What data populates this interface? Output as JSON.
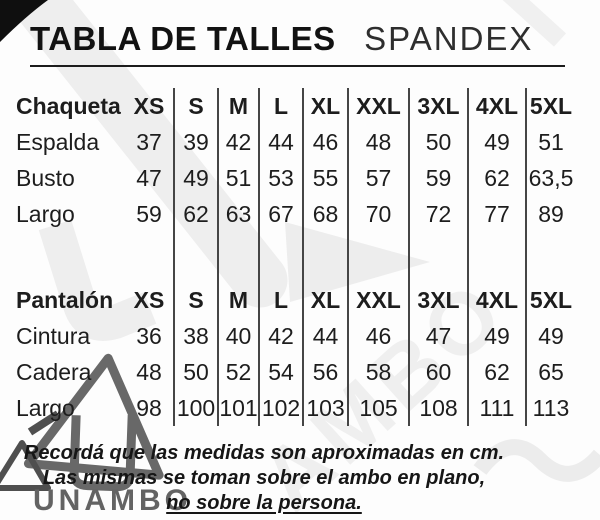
{
  "header": {
    "title": "TABLA DE TALLES",
    "subtitle": "SPANDEX"
  },
  "sizes": [
    "XS",
    "S",
    "M",
    "L",
    "XL",
    "XXL",
    "3XL",
    "4XL",
    "5XL"
  ],
  "tables": [
    {
      "section": "Chaqueta",
      "rows": [
        {
          "label": "Espalda",
          "values": [
            "37",
            "39",
            "42",
            "44",
            "46",
            "48",
            "50",
            "49",
            "51"
          ]
        },
        {
          "label": "Busto",
          "values": [
            "47",
            "49",
            "51",
            "53",
            "55",
            "57",
            "59",
            "62",
            "63,5"
          ]
        },
        {
          "label": "Largo",
          "values": [
            "59",
            "62",
            "63",
            "67",
            "68",
            "70",
            "72",
            "77",
            "89"
          ]
        }
      ]
    },
    {
      "section": "Pantalón",
      "rows": [
        {
          "label": "Cintura",
          "values": [
            "36",
            "38",
            "40",
            "42",
            "44",
            "46",
            "47",
            "49",
            "49"
          ]
        },
        {
          "label": "Cadera",
          "values": [
            "48",
            "50",
            "52",
            "54",
            "56",
            "58",
            "60",
            "62",
            "65"
          ]
        },
        {
          "label": "Largo",
          "values": [
            "98",
            "100",
            "101",
            "102",
            "103",
            "105",
            "108",
            "111",
            "113"
          ]
        }
      ]
    }
  ],
  "footer": {
    "line1": "Recordá que las medidas son aproximadas en cm.",
    "line2": "Las mismas se toman sobre el ambo en plano,",
    "line3": "no sobre la persona."
  },
  "watermark": {
    "brand": "UNAMBO",
    "logo": "triangle-u-logo",
    "faint_text": "AMBO"
  },
  "colors": {
    "text": "#1d1d1d",
    "divider": "#454545",
    "brand_gray": "#636363",
    "watermark_light": "#ededed"
  }
}
